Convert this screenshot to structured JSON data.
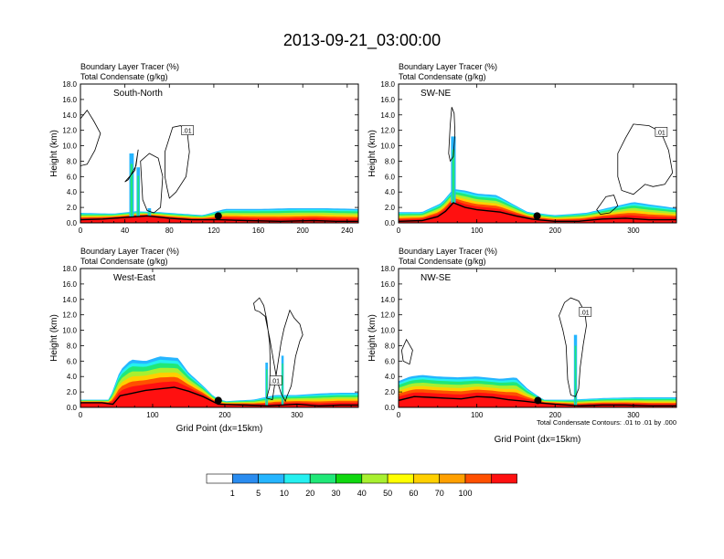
{
  "figure_title": "2013-09-21_03:00:00",
  "colors": {
    "bg": "#ffffff",
    "palette": [
      "#ffffff",
      "#2a8cf0",
      "#25b5ff",
      "#25f0f0",
      "#20e878",
      "#10d810",
      "#a8f030",
      "#ffff00",
      "#ffd000",
      "#ffa000",
      "#ff5000",
      "#ff1010"
    ]
  },
  "colorbar": {
    "labels": [
      "1",
      "5",
      "10",
      "20",
      "30",
      "40",
      "50",
      "60",
      "70",
      "100"
    ]
  },
  "chart_data": [
    {
      "type": "heatmap",
      "title": "South-North",
      "subtitle1": "Boundary Layer Tracer   (%)",
      "subtitle2": "Total Condensate   (g/kg)",
      "ylabel": "Height (km)",
      "xlabel": "",
      "xlim": [
        0,
        250
      ],
      "ylim": [
        0,
        18
      ],
      "xticks": [
        "0",
        "40",
        "80",
        "120",
        "160",
        "200",
        "240"
      ],
      "yticks": [
        "0.0",
        "2.0",
        "4.0",
        "6.0",
        "8.0",
        "10.0",
        "12.0",
        "14.0",
        "16.0",
        "18.0"
      ],
      "contour_label": ".01",
      "marker_x": 124
    },
    {
      "type": "heatmap",
      "title": "SW-NE",
      "subtitle1": "Boundary Layer Tracer   (%)",
      "subtitle2": "Total Condensate   (g/kg)",
      "ylabel": "Height (km)",
      "xlabel": "",
      "xlim": [
        0,
        355
      ],
      "ylim": [
        0,
        18
      ],
      "xticks": [
        "0",
        "100",
        "200",
        "300"
      ],
      "yticks": [
        "0.0",
        "2.0",
        "4.0",
        "6.0",
        "8.0",
        "10.0",
        "12.0",
        "14.0",
        "16.0",
        "18.0"
      ],
      "contour_label": ".01",
      "marker_x": 177
    },
    {
      "type": "heatmap",
      "title": "West-East",
      "subtitle1": "Boundary Layer Tracer   (%)",
      "subtitle2": "Total Condensate   (g/kg)",
      "ylabel": "Height (km)",
      "xlabel": "Grid Point (dx=15km)",
      "xlim": [
        0,
        385
      ],
      "ylim": [
        0,
        18
      ],
      "xticks": [
        "0",
        "100",
        "200",
        "300"
      ],
      "yticks": [
        "0.0",
        "2.0",
        "4.0",
        "6.0",
        "8.0",
        "10.0",
        "12.0",
        "14.0",
        "16.0",
        "18.0"
      ],
      "contour_label": ".01",
      "marker_x": 191
    },
    {
      "type": "heatmap",
      "title": "NW-SE",
      "subtitle1": "Boundary Layer Tracer   (%)",
      "subtitle2": "Total Condensate   (g/kg)",
      "ylabel": "Height (km)",
      "xlabel": "Grid Point (dx=15km)",
      "xlim": [
        0,
        355
      ],
      "ylim": [
        0,
        18
      ],
      "xticks": [
        "0",
        "100",
        "200",
        "300"
      ],
      "yticks": [
        "0.0",
        "2.0",
        "4.0",
        "6.0",
        "8.0",
        "10.0",
        "12.0",
        "14.0",
        "16.0",
        "18.0"
      ],
      "contour_label": ".01",
      "marker_x": 178,
      "note": "Total Condensate Contours: .01 to .01 by .000"
    }
  ]
}
